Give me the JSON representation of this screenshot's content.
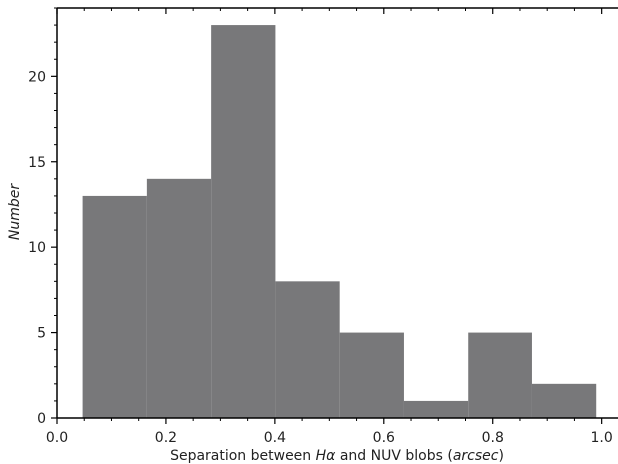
{
  "chart_data": {
    "type": "bar",
    "title": "",
    "xlabel": {
      "prefix": "Separation between ",
      "halpha_letter": "H",
      "halpha_sub": "α",
      "middle": " and NUV blobs (",
      "unit": "arcsec",
      "suffix": ")"
    },
    "ylabel": "Number",
    "xlim": [
      0.0,
      1.03
    ],
    "ylim": [
      0,
      24
    ],
    "x_ticks": [
      "0.0",
      "0.2",
      "0.4",
      "0.6",
      "0.8",
      "1.0"
    ],
    "y_ticks": [
      "0",
      "5",
      "10",
      "15",
      "20"
    ],
    "x_tick_values": [
      0.0,
      0.2,
      0.4,
      0.6,
      0.8,
      1.0
    ],
    "y_tick_values": [
      0,
      5,
      10,
      15,
      20
    ],
    "bin_edges": [
      0.047,
      0.165,
      0.283,
      0.401,
      0.519,
      0.637,
      0.755,
      0.872,
      0.99
    ],
    "values": [
      13,
      14,
      23,
      8,
      5,
      1,
      5,
      2
    ],
    "bar_color": "#78787a",
    "grid": false,
    "legend": "none"
  }
}
